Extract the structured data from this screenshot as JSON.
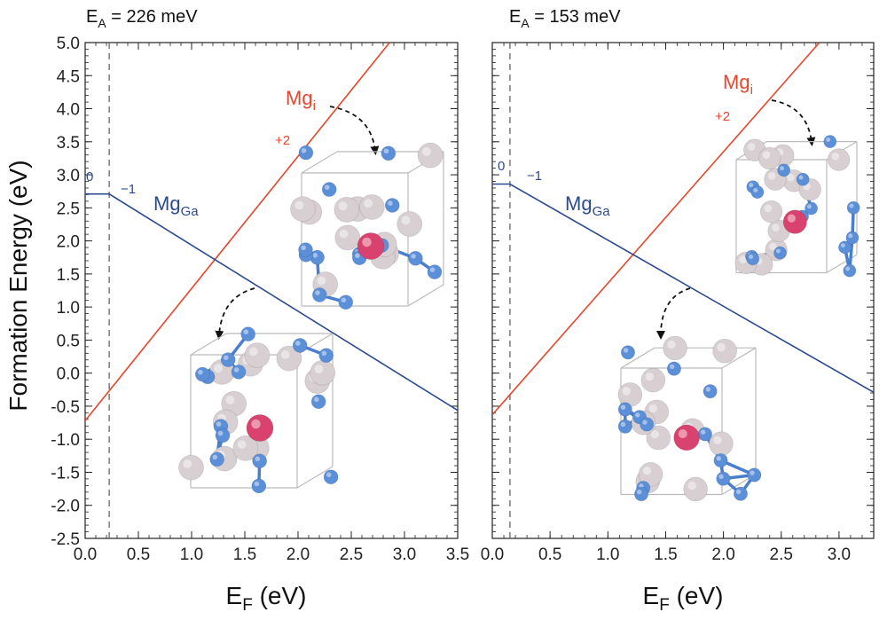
{
  "chart_data": [
    {
      "type": "line",
      "title_main": "E",
      "title_sub": "A",
      "title_rest": " = 226 meV",
      "xlabel_main": "E",
      "xlabel_sub": "F",
      "xlabel_rest": " (eV)",
      "ylabel": "Formation Energy (eV)",
      "xlim": [
        0,
        3.5
      ],
      "ylim": [
        -2.5,
        5.0
      ],
      "xticks": [
        "0.0",
        "0.5",
        "1.0",
        "1.5",
        "2.0",
        "2.5",
        "3.0",
        "3.5"
      ],
      "yticks": [
        "-2.5",
        "-2.0",
        "-1.5",
        "-1.0",
        "-0.5",
        "0.0",
        "0.5",
        "1.0",
        "1.5",
        "2.0",
        "2.5",
        "3.0",
        "3.5",
        "4.0",
        "4.5",
        "5.0"
      ],
      "vline_x": 0.226,
      "series": [
        {
          "name_main": "Mg",
          "name_sub": "i",
          "color": "#e8452c",
          "charge": "+2",
          "x": [
            0,
            2.86
          ],
          "y": [
            -0.72,
            5.0
          ]
        },
        {
          "name_main": "Mg",
          "name_sub": "Ga",
          "color": "#2b4a8e",
          "charge_left": "0",
          "charge_right": "−1",
          "x": [
            0,
            0.226,
            3.5
          ],
          "y": [
            2.71,
            2.71,
            -0.564
          ]
        }
      ]
    },
    {
      "type": "line",
      "title_main": "E",
      "title_sub": "A",
      "title_rest": " = 153 meV",
      "xlabel_main": "E",
      "xlabel_sub": "F",
      "xlabel_rest": " (eV)",
      "xlim": [
        0,
        3.3
      ],
      "ylim": [
        -2.5,
        5.0
      ],
      "xticks": [
        "0.0",
        "0.5",
        "1.0",
        "1.5",
        "2.0",
        "2.5",
        "3.0"
      ],
      "vline_x": 0.153,
      "series": [
        {
          "name_main": "Mg",
          "name_sub": "i",
          "color": "#e8452c",
          "charge": "+2",
          "x": [
            0,
            2.83
          ],
          "y": [
            -0.63,
            5.0
          ]
        },
        {
          "name_main": "Mg",
          "name_sub": "Ga",
          "color": "#2b4a8e",
          "charge_left": "0",
          "charge_right": "−1",
          "x": [
            0,
            0.153,
            3.3
          ],
          "y": [
            2.86,
            2.86,
            -0.29
          ]
        }
      ]
    }
  ],
  "colors": {
    "atom_n": "#5b8fd8",
    "atom_ga": "#d8cfd2",
    "atom_mg": "#d9426e",
    "bond_n": "#4a7fd0"
  }
}
